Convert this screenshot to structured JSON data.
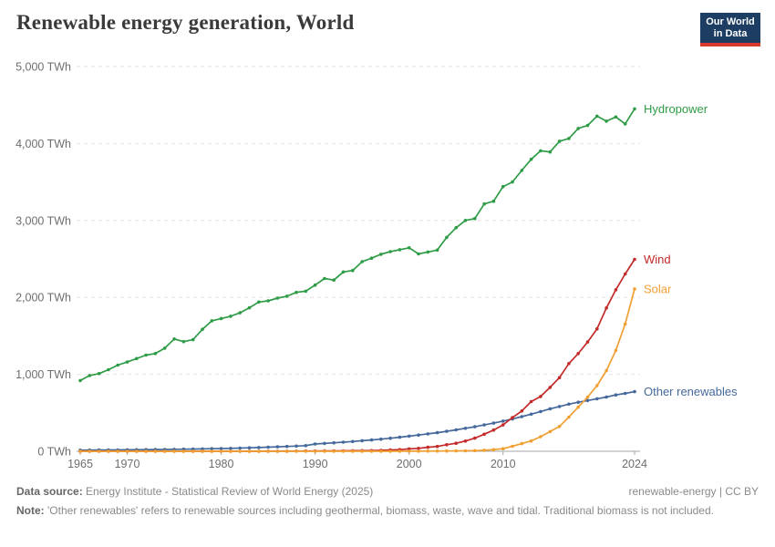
{
  "header": {
    "title": "Renewable energy generation, World",
    "logo": {
      "line1": "Our World",
      "line2": "in Data",
      "bg_color": "#1d3d63",
      "bar_color": "#d93a2b"
    }
  },
  "chart_data": {
    "type": "line",
    "title": "Renewable energy generation, World",
    "xlabel": "",
    "ylabel": "TWh",
    "xlim": [
      1965,
      2024
    ],
    "ylim": [
      0,
      5000
    ],
    "grid": "dashed-horizontal",
    "legend_position": "end-of-line-labels",
    "xticks": [
      1965,
      1970,
      1980,
      1990,
      2000,
      2010,
      2024
    ],
    "yticks": [
      0,
      1000,
      2000,
      3000,
      4000,
      5000
    ],
    "ytick_labels": [
      "0 TWh",
      "1,000 TWh",
      "2,000 TWh",
      "3,000 TWh",
      "4,000 TWh",
      "5,000 TWh"
    ],
    "x": [
      1965,
      1966,
      1967,
      1968,
      1969,
      1970,
      1971,
      1972,
      1973,
      1974,
      1975,
      1976,
      1977,
      1978,
      1979,
      1980,
      1981,
      1982,
      1983,
      1984,
      1985,
      1986,
      1987,
      1988,
      1989,
      1990,
      1991,
      1992,
      1993,
      1994,
      1995,
      1996,
      1997,
      1998,
      1999,
      2000,
      2001,
      2002,
      2003,
      2004,
      2005,
      2006,
      2007,
      2008,
      2009,
      2010,
      2011,
      2012,
      2013,
      2014,
      2015,
      2016,
      2017,
      2018,
      2019,
      2020,
      2021,
      2022,
      2023,
      2024
    ],
    "series": [
      {
        "name": "Hydropower",
        "color": "#2e9c46",
        "values": [
          920,
          985,
          1010,
          1060,
          1120,
          1160,
          1205,
          1250,
          1270,
          1340,
          1460,
          1425,
          1450,
          1585,
          1695,
          1725,
          1755,
          1800,
          1865,
          1940,
          1955,
          1990,
          2015,
          2065,
          2080,
          2160,
          2245,
          2225,
          2330,
          2350,
          2465,
          2510,
          2560,
          2595,
          2620,
          2645,
          2565,
          2590,
          2615,
          2780,
          2905,
          3000,
          3025,
          3215,
          3250,
          3440,
          3500,
          3650,
          3795,
          3905,
          3890,
          4030,
          4065,
          4195,
          4235,
          4355,
          4290,
          4345,
          4255,
          4450
        ]
      },
      {
        "name": "Wind",
        "color": "#c32a2a",
        "values": [
          0,
          0,
          0,
          0,
          0,
          0,
          0,
          0,
          0,
          0,
          0,
          0,
          0,
          0,
          0,
          0,
          0.1,
          0.1,
          0.2,
          0.3,
          0.6,
          1,
          1.7,
          2.4,
          3.4,
          3.9,
          4.6,
          5.1,
          5.8,
          7.1,
          8.3,
          9.4,
          12,
          16,
          21,
          31,
          38,
          52,
          63,
          85,
          104,
          133,
          171,
          221,
          276,
          342,
          437,
          524,
          646,
          712,
          831,
          957,
          1140,
          1270,
          1421,
          1591,
          1862,
          2098,
          2304,
          2494
        ]
      },
      {
        "name": "Solar",
        "color": "#f0a032",
        "values": [
          0,
          0,
          0,
          0,
          0,
          0,
          0,
          0,
          0,
          0,
          0,
          0,
          0,
          0,
          0,
          0,
          0,
          0,
          0,
          0,
          0,
          0,
          0,
          0,
          0,
          0.1,
          0.1,
          0.1,
          0.2,
          0.2,
          0.3,
          0.3,
          0.4,
          0.5,
          0.7,
          1.1,
          1.4,
          1.8,
          2.3,
          3.2,
          4.3,
          5.9,
          8.1,
          12.6,
          20.8,
          33,
          65,
          99,
          134,
          190,
          256,
          322,
          444,
          574,
          704,
          853,
          1048,
          1310,
          1654,
          2110
        ]
      },
      {
        "name": "Other renewables",
        "color": "#46699b",
        "values": [
          14,
          15,
          16,
          17,
          18,
          19,
          20,
          21,
          22,
          24,
          25,
          27,
          29,
          31,
          33,
          35,
          38,
          41,
          45,
          49,
          53,
          58,
          63,
          68,
          74,
          95,
          102,
          110,
          118,
          127,
          137,
          147,
          158,
          170,
          183,
          197,
          211,
          226,
          242,
          259,
          278,
          298,
          319,
          342,
          366,
          392,
          420,
          450,
          482,
          516,
          552,
          582,
          612,
          638,
          660,
          682,
          705,
          732,
          752,
          775
        ]
      }
    ]
  },
  "footer": {
    "data_source_label": "Data source:",
    "data_source_text": "Energy Institute - Statistical Review of World Energy (2025)",
    "rights": "renewable-energy | CC BY",
    "note_label": "Note:",
    "note_text": "'Other renewables' refers to renewable sources including geothermal, biomass, waste, wave and tidal. Traditional biomass is not included."
  }
}
